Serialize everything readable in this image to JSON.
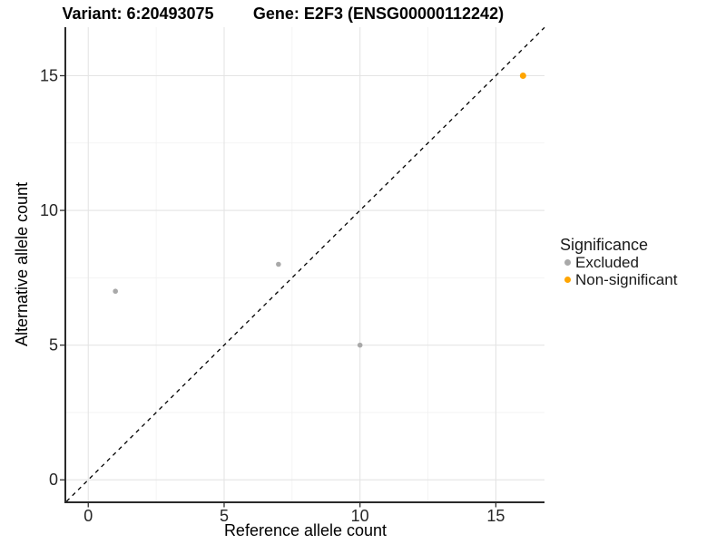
{
  "chart_data": {
    "type": "scatter",
    "title_left": "Variant: 6:20493075",
    "title_right": "Gene: E2F3 (ENSG00000112242)",
    "xlabel": "Reference allele count",
    "ylabel": "Alternative allele count",
    "xlim": [
      -0.81,
      16.79
    ],
    "ylim": [
      -0.8,
      16.8
    ],
    "x_major_ticks": [
      0,
      5,
      10,
      15
    ],
    "y_major_ticks": [
      0,
      5,
      10,
      15
    ],
    "x_minor_gridlines": [
      2.5,
      7.5,
      12.5
    ],
    "y_minor_gridlines": [
      2.5,
      7.5,
      12.5
    ],
    "grid": "major+minor",
    "legend_position": "right",
    "reference_line": {
      "type": "identity-diagonal",
      "style": "dashed",
      "color": "#000000"
    },
    "series": [
      {
        "name": "Excluded",
        "color": "#A9A9A9",
        "point_radius": 2.8,
        "points": [
          [
            1,
            7
          ],
          [
            7,
            8
          ],
          [
            10,
            5
          ]
        ]
      },
      {
        "name": "Non-significant",
        "color": "#FFA500",
        "point_radius": 3.5,
        "points": [
          [
            16,
            15
          ]
        ]
      }
    ],
    "legend": {
      "title": "Significance"
    }
  },
  "colors": {
    "background": "#FFFFFF",
    "axis_line": "#2A2A2A",
    "tick_mark": "#333333",
    "tick_label": "#262626",
    "major_grid": "#E4E4E4",
    "minor_grid": "#F1F1F1",
    "title_text": "#000000",
    "excluded_point": "#A9A9A9",
    "non_significant_point": "#FFA500"
  }
}
